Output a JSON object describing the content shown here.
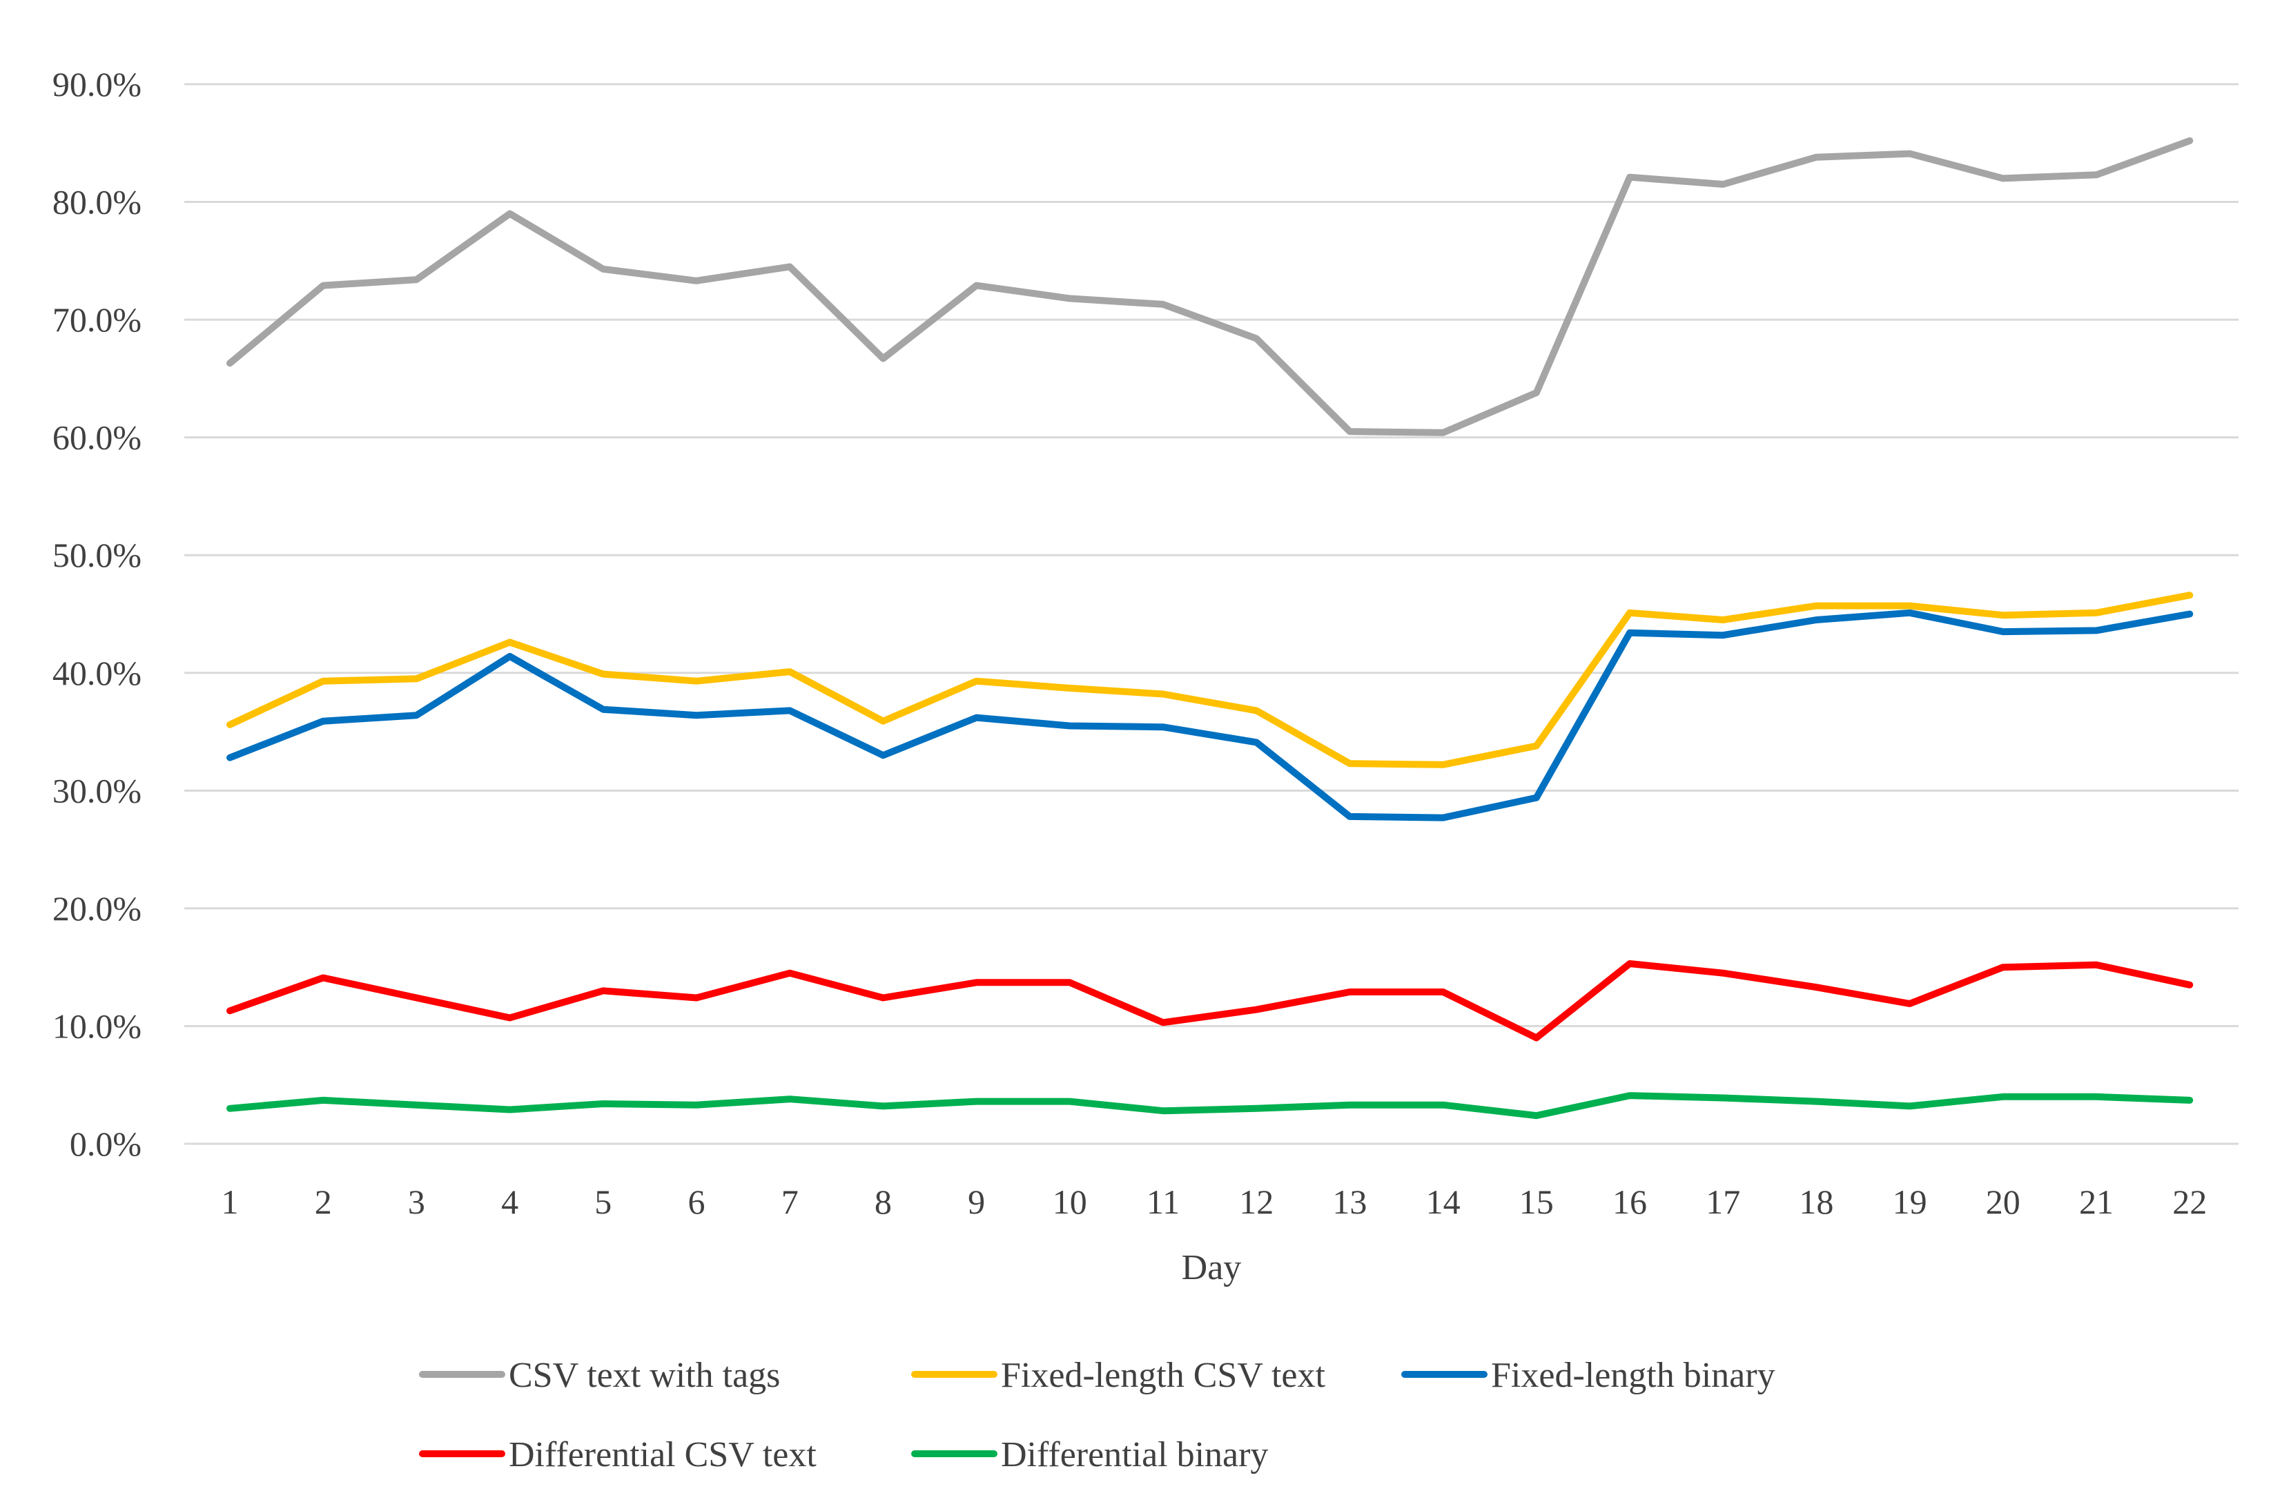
{
  "chart_data": {
    "type": "line",
    "title": "",
    "xlabel": "Day",
    "ylabel": "",
    "ylim": [
      0,
      90
    ],
    "ytick_step": 10,
    "ytick_labels": [
      "0.0%",
      "10.0%",
      "20.0%",
      "30.0%",
      "40.0%",
      "50.0%",
      "60.0%",
      "70.0%",
      "80.0%",
      "90.0%"
    ],
    "categories": [
      "1",
      "2",
      "3",
      "4",
      "5",
      "6",
      "7",
      "8",
      "9",
      "10",
      "11",
      "12",
      "13",
      "14",
      "15",
      "16",
      "17",
      "18",
      "19",
      "20",
      "21",
      "22"
    ],
    "grid": true,
    "legend_position": "bottom",
    "series": [
      {
        "name": "CSV text with tags",
        "color": "#a5a5a5",
        "values": [
          66.3,
          72.9,
          73.4,
          79.0,
          74.3,
          73.3,
          74.5,
          66.7,
          72.9,
          71.8,
          71.3,
          68.4,
          60.5,
          60.4,
          63.8,
          82.1,
          81.5,
          83.8,
          84.1,
          82.0,
          82.3,
          85.2
        ]
      },
      {
        "name": "Fixed-length CSV text",
        "color": "#ffc000",
        "values": [
          35.6,
          39.3,
          39.5,
          42.6,
          39.9,
          39.3,
          40.1,
          35.9,
          39.3,
          38.7,
          38.2,
          36.8,
          32.3,
          32.2,
          33.8,
          45.1,
          44.5,
          45.7,
          45.7,
          44.9,
          45.1,
          46.6
        ]
      },
      {
        "name": "Fixed-length binary",
        "color": "#0070c0",
        "values": [
          32.8,
          35.9,
          36.4,
          41.4,
          36.9,
          36.4,
          36.8,
          33.0,
          36.2,
          35.5,
          35.4,
          34.1,
          27.8,
          27.7,
          29.4,
          43.4,
          43.2,
          44.5,
          45.1,
          43.5,
          43.6,
          45.0
        ]
      },
      {
        "name": "Differential CSV text",
        "color": "#ff0000",
        "values": [
          11.3,
          14.1,
          12.4,
          10.7,
          13.0,
          12.4,
          14.5,
          12.4,
          13.7,
          13.7,
          10.3,
          11.4,
          12.9,
          12.9,
          9.0,
          15.3,
          14.5,
          13.3,
          11.9,
          15.0,
          15.2,
          13.5
        ]
      },
      {
        "name": "Differential binary",
        "color": "#00b050",
        "values": [
          3.0,
          3.7,
          3.3,
          2.9,
          3.4,
          3.3,
          3.8,
          3.2,
          3.6,
          3.6,
          2.8,
          3.0,
          3.3,
          3.3,
          2.4,
          4.1,
          3.9,
          3.6,
          3.2,
          4.0,
          4.0,
          3.7
        ]
      }
    ]
  }
}
